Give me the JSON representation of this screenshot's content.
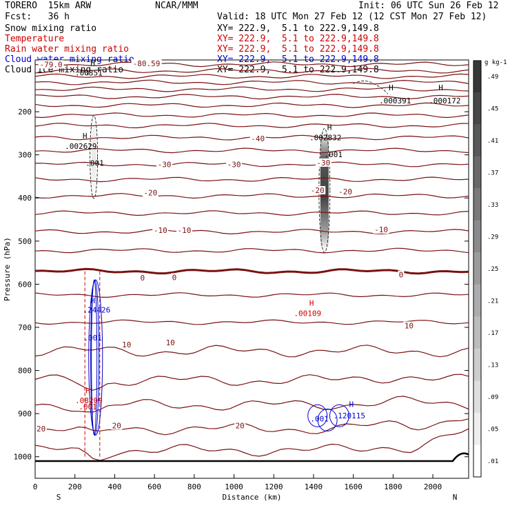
{
  "header": {
    "model": "TORERO  15km ARW",
    "center": "NCAR/MMM",
    "init": "Init: 06 UTC Sun 26 Feb 12",
    "fcst": "Fcst:   36 h",
    "valid": "Valid: 18 UTC Mon 27 Feb 12 (12 CST Mon 27 Feb 12)"
  },
  "fields": [
    {
      "name": "Snow mixing ratio",
      "xy": "XY= 222.9,  5.1 to 222.9,149.8",
      "color": "#000000"
    },
    {
      "name": "Temperature",
      "xy": "XY= 222.9,  5.1 to 222.9,149.8",
      "color": "#cc0000"
    },
    {
      "name": "Rain water mixing ratio",
      "xy": "XY= 222.9,  5.1 to 222.9,149.8",
      "color": "#cc0000"
    },
    {
      "name": "Cloud water mixing ratio",
      "xy": "XY= 222.9,  5.1 to 222.9,149.8",
      "color": "#0000cc"
    },
    {
      "name": "Cloud ice mixing ratio",
      "xy": "XY= 222.9,  5.1 to 222.9,149.8",
      "color": "#000000"
    }
  ],
  "colors": {
    "temperature": "#7a1010",
    "rain": "#cc0000",
    "cloudwater": "#0000cc",
    "ice": "#000000"
  },
  "chart_data": {
    "type": "cross-section",
    "xlabel": "Distance (km)",
    "ylabel": "Pressure (hPa)",
    "xlim": [
      0,
      2180
    ],
    "ylim": [
      1050,
      80
    ],
    "xticks": [
      0,
      200,
      400,
      600,
      800,
      1000,
      1200,
      1400,
      1600,
      1800,
      2000
    ],
    "yticks": [
      200,
      300,
      400,
      500,
      600,
      700,
      800,
      900,
      1000
    ],
    "x_end_labels": {
      "left": "S",
      "right": "N"
    },
    "colorbar": {
      "unit": "g kg-1",
      "levels": [
        0.01,
        0.05,
        0.09,
        0.13,
        0.17,
        0.21,
        0.25,
        0.29,
        0.33,
        0.37,
        0.41,
        0.45,
        0.49
      ],
      "labels": [
        ".01",
        ".05",
        ".09",
        ".13",
        ".17",
        ".21",
        ".25",
        ".29",
        ".33",
        ".37",
        ".41",
        ".45",
        ".49"
      ]
    },
    "temperature_levels": [
      {
        "p": 90,
        "label": "",
        "bold": false
      },
      {
        "p": 105,
        "label": "",
        "bold": false
      },
      {
        "p": 118,
        "label": "",
        "bold": false
      },
      {
        "p": 132,
        "label": "",
        "bold": false
      },
      {
        "p": 148,
        "label": "",
        "bold": false
      },
      {
        "p": 165,
        "label": "",
        "bold": false
      },
      {
        "p": 185,
        "label": "",
        "bold": false
      },
      {
        "p": 208,
        "label": "",
        "bold": false
      },
      {
        "p": 232,
        "label": "",
        "bold": false
      },
      {
        "p": 260,
        "label": "-40",
        "bold": false
      },
      {
        "p": 290,
        "label": "",
        "bold": false
      },
      {
        "p": 322,
        "label": "-30",
        "bold": false
      },
      {
        "p": 357,
        "label": "",
        "bold": false
      },
      {
        "p": 395,
        "label": "-20",
        "bold": false
      },
      {
        "p": 435,
        "label": "",
        "bold": false
      },
      {
        "p": 478,
        "label": "-10",
        "bold": false
      },
      {
        "p": 522,
        "label": "",
        "bold": false
      },
      {
        "p": 570,
        "label": "0",
        "bold": true
      },
      {
        "p": 625,
        "label": "",
        "bold": false
      },
      {
        "p": 688,
        "label": "",
        "bold": false
      },
      {
        "p": 755,
        "label": "10",
        "bold": false
      },
      {
        "p": 823,
        "label": "",
        "bold": false
      },
      {
        "p": 880,
        "label": "",
        "bold": false
      },
      {
        "p": 935,
        "label": "20",
        "bold": false
      },
      {
        "p": 985,
        "label": "",
        "bold": false
      }
    ],
    "temp_labels": [
      {
        "x": 80,
        "p": 90,
        "text": "-79.0"
      },
      {
        "x": 560,
        "p": 88,
        "text": "-80.59"
      },
      {
        "x": 1120,
        "p": 262,
        "text": "-40"
      },
      {
        "x": 650,
        "p": 322,
        "text": "-30"
      },
      {
        "x": 1000,
        "p": 322,
        "text": "-30"
      },
      {
        "x": 1450,
        "p": 318,
        "text": "-30"
      },
      {
        "x": 580,
        "p": 388,
        "text": "-20"
      },
      {
        "x": 1420,
        "p": 382,
        "text": "-20"
      },
      {
        "x": 1560,
        "p": 385,
        "text": "-20"
      },
      {
        "x": 630,
        "p": 475,
        "text": "-10"
      },
      {
        "x": 750,
        "p": 475,
        "text": "-10"
      },
      {
        "x": 1740,
        "p": 473,
        "text": "-10"
      },
      {
        "x": 540,
        "p": 585,
        "text": "0"
      },
      {
        "x": 700,
        "p": 584,
        "text": "0"
      },
      {
        "x": 1840,
        "p": 578,
        "text": "0"
      },
      {
        "x": 1880,
        "p": 696,
        "text": "10"
      },
      {
        "x": 680,
        "p": 735,
        "text": "10"
      },
      {
        "x": 460,
        "p": 740,
        "text": "10"
      },
      {
        "x": 30,
        "p": 935,
        "text": "20"
      },
      {
        "x": 410,
        "p": 928,
        "text": "20"
      },
      {
        "x": 1030,
        "p": 928,
        "text": "20"
      }
    ],
    "maxima": [
      {
        "x": 270,
        "p": 100,
        "text": ".00351",
        "color": "#000000",
        "hx": 290,
        "hp": 93
      },
      {
        "x": 1810,
        "p": 165,
        "text": ".000391",
        "color": "#000000",
        "hx": 1790,
        "hp": 150
      },
      {
        "x": 2060,
        "p": 165,
        "text": ".000172",
        "color": "#000000",
        "hx": 2040,
        "hp": 150
      },
      {
        "x": 230,
        "p": 270,
        "text": ".002629",
        "color": "#000000",
        "hx": 250,
        "hp": 262
      },
      {
        "x": 1460,
        "p": 250,
        "text": ".002832",
        "color": "#000000",
        "hx": 1480,
        "hp": 242
      },
      {
        "x": 310,
        "p": 650,
        "text": ".24426",
        "color": "#0000cc",
        "hx": 290,
        "hp": 644
      },
      {
        "x": 1370,
        "p": 658,
        "text": ".00109",
        "color": "#cc0000",
        "hx": 1390,
        "hp": 650
      },
      {
        "x": 270,
        "p": 860,
        "text": ".08209",
        "color": "#cc0000",
        "hx": 265,
        "hp": 853
      },
      {
        "x": 1580,
        "p": 895,
        "text": ".120115",
        "color": "#0000cc",
        "hx": 1590,
        "hp": 885
      }
    ],
    "contour_labels": [
      {
        "x": 300,
        "p": 325,
        "text": ".001",
        "color": "#000000"
      },
      {
        "x": 1500,
        "p": 305,
        "text": ".001",
        "color": "#000000"
      },
      {
        "x": 290,
        "p": 730,
        "text": ".001",
        "color": "#0000cc"
      },
      {
        "x": 265,
        "p": 890,
        "text": ".001",
        "color": "#cc0000"
      },
      {
        "x": 1430,
        "p": 918,
        "text": ".001",
        "color": "#0000cc"
      }
    ],
    "snow_plumes": [
      {
        "x": 295,
        "p_top": 215,
        "p_bot": 395,
        "peak": 0.05
      },
      {
        "x": 1455,
        "p_top": 245,
        "p_bot": 520,
        "peak": 0.45
      }
    ],
    "rain_column": {
      "x_left": 250,
      "x_right": 325,
      "p_top": 570,
      "p_bot": 1000
    },
    "terrain_pressure": 1010
  }
}
